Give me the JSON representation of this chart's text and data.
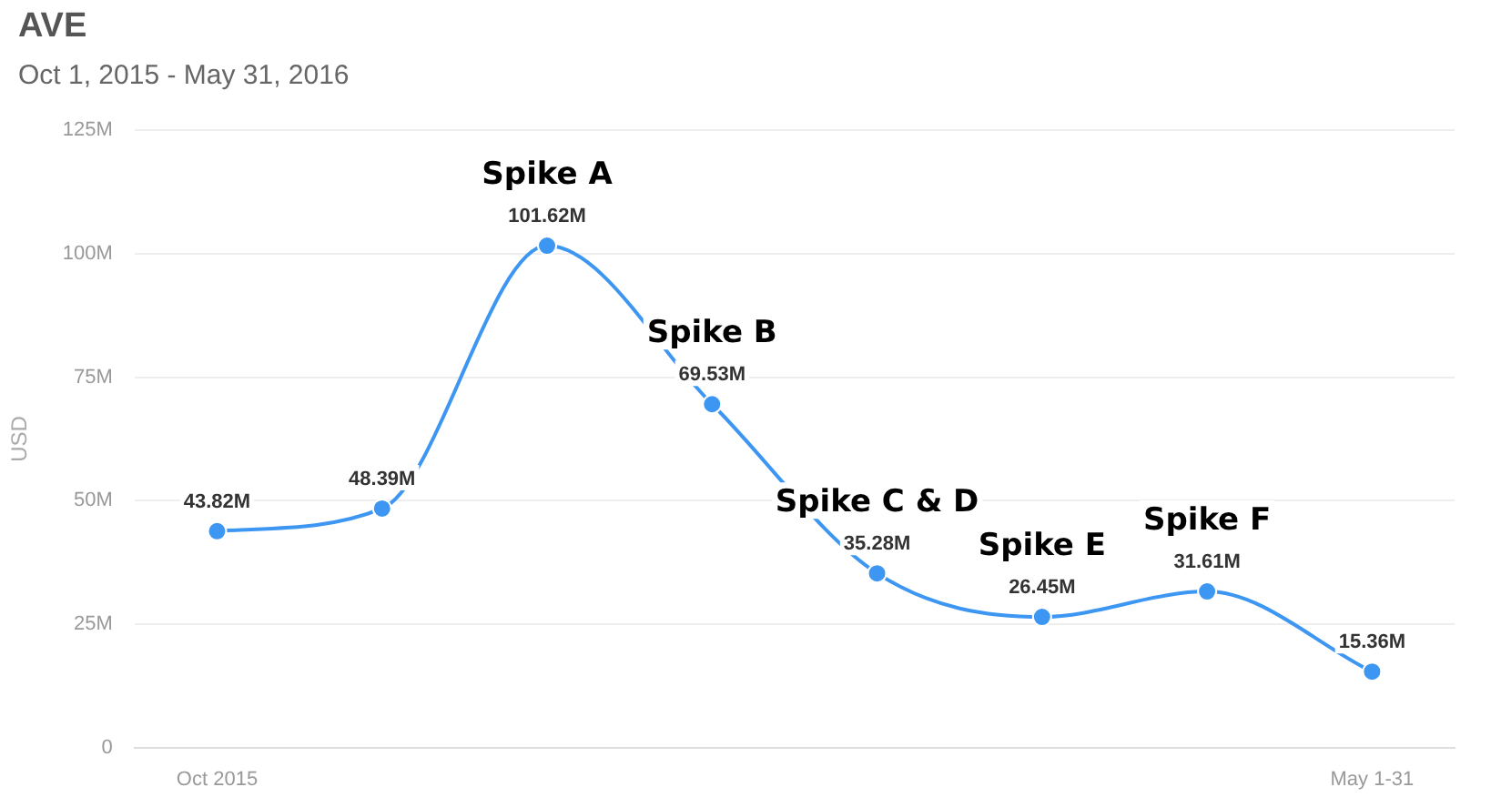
{
  "chart_data": {
    "type": "line",
    "title": "AVE",
    "subtitle": "Oct 1, 2015 - May 31, 2016",
    "ylabel": "USD",
    "categories": [
      "Oct 2015",
      null,
      null,
      null,
      null,
      null,
      null,
      "May 1-31"
    ],
    "series": [
      {
        "color": "#3d97f2",
        "values": [
          43.82,
          48.39,
          101.62,
          69.53,
          35.28,
          26.45,
          31.61,
          15.36
        ],
        "value_labels": [
          "43.82M",
          "48.39M",
          "101.62M",
          "69.53M",
          "35.28M",
          "26.45M",
          "31.61M",
          "15.36M"
        ]
      }
    ],
    "ylim": [
      0,
      125
    ],
    "yticks": [
      0,
      {
        "value": 25,
        "label": "25M"
      },
      {
        "value": 50,
        "label": "50M"
      },
      {
        "value": 75,
        "label": "75M"
      },
      {
        "value": 100,
        "label": "100M"
      },
      {
        "value": 125,
        "label": "125M"
      }
    ],
    "grid": "y",
    "marker": "circle",
    "line_style": "solid",
    "legend": false,
    "annotations": [
      {
        "text": "Spike A",
        "y": 101.62
      },
      {
        "text": "Spike B",
        "y": 69.53
      },
      {
        "text": "Spike C & D",
        "y": 35.28
      },
      {
        "text": "Spike E",
        "y": 26.45
      },
      {
        "text": "Spike F",
        "y": 31.61
      }
    ]
  }
}
